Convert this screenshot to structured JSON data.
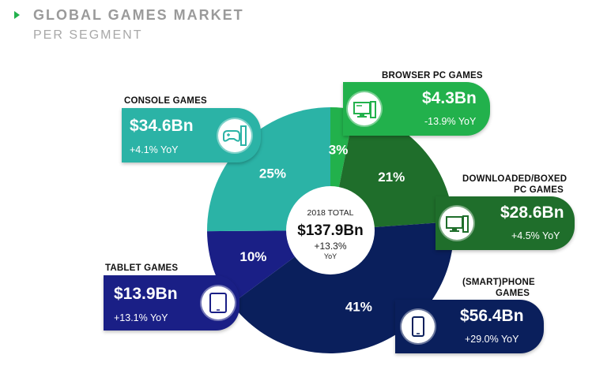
{
  "header": {
    "title": "GLOBAL GAMES MARKET",
    "subtitle": "PER SEGMENT"
  },
  "center": {
    "label": "2018 TOTAL",
    "total": "$137.9Bn",
    "yoy_value": "+13.3%",
    "yoy_unit": "YoY"
  },
  "segments": [
    {
      "name": "BROWSER PC GAMES",
      "value": "$4.3Bn",
      "yoy": "-13.9% YoY",
      "pct": "3%",
      "icon": "desktop-pc-icon",
      "color": "#22b14c"
    },
    {
      "name": "DOWNLOADED/BOXED",
      "name2": "PC GAMES",
      "value": "$28.6Bn",
      "yoy": "+4.5% YoY",
      "pct": "21%",
      "icon": "desktop-pc-icon",
      "color": "#1f6e2b"
    },
    {
      "name": "(SMART)PHONE",
      "name2": "GAMES",
      "value": "$56.4Bn",
      "yoy": "+29.0% YoY",
      "pct": "41%",
      "icon": "smartphone-icon",
      "color": "#0a1f5c"
    },
    {
      "name": "TABLET GAMES",
      "value": "$13.9Bn",
      "yoy": "+13.1% YoY",
      "pct": "10%",
      "icon": "tablet-icon",
      "color": "#1a1f86"
    },
    {
      "name": "CONSOLE GAMES",
      "value": "$34.6Bn",
      "yoy": "+4.1% YoY",
      "pct": "25%",
      "icon": "console-icon",
      "color": "#2bb3a6"
    }
  ],
  "chart_data": {
    "type": "pie",
    "title": "GLOBAL GAMES MARKET",
    "subtitle": "PER SEGMENT",
    "center_label": "2018 TOTAL",
    "total": 137.9,
    "categories": [
      "BROWSER PC GAMES",
      "DOWNLOADED/BOXED PC GAMES",
      "(SMART)PHONE GAMES",
      "TABLET GAMES",
      "CONSOLE GAMES"
    ],
    "values": [
      4.3,
      28.6,
      56.4,
      13.9,
      34.6
    ],
    "percent_labels": [
      3,
      21,
      41,
      10,
      25
    ],
    "yoy_change_pct": [
      -13.9,
      4.5,
      29.0,
      13.1,
      4.1
    ],
    "colors": [
      "#22b14c",
      "#1f6e2b",
      "#0a1f5c",
      "#1a1f86",
      "#2bb3a6"
    ]
  }
}
